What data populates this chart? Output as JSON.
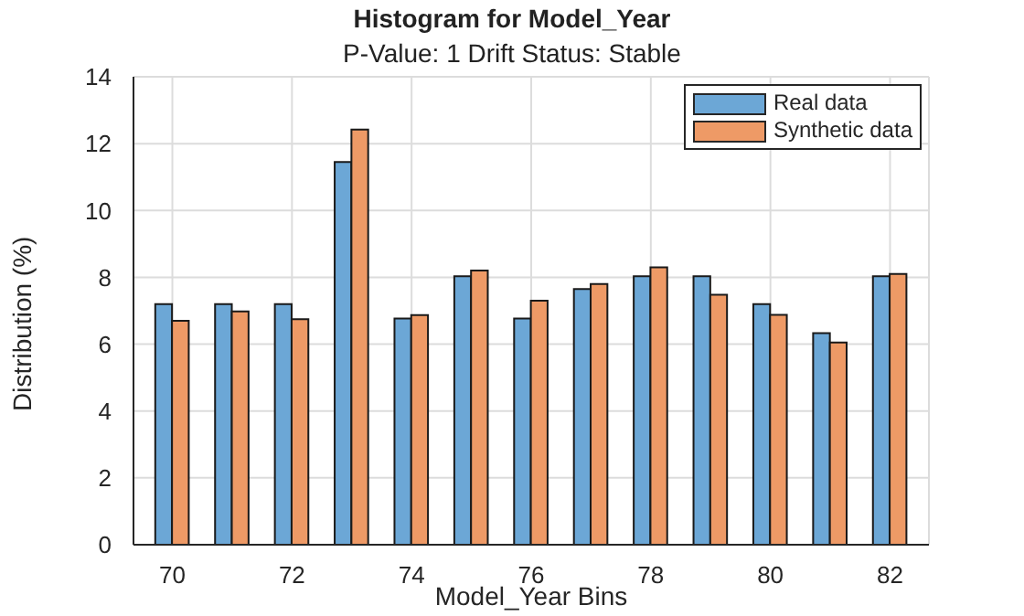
{
  "chart_data": {
    "type": "bar",
    "title": "Histogram for Model_Year",
    "subtitle": "P-Value: 1 Drift Status: Stable",
    "xlabel": "Model_Year Bins",
    "ylabel": "Distribution (%)",
    "x": [
      70,
      71,
      72,
      73,
      74,
      75,
      76,
      77,
      78,
      79,
      80,
      81,
      82
    ],
    "series": [
      {
        "name": "Real data",
        "color": "#6ca7d6",
        "values": [
          7.2,
          7.2,
          7.2,
          11.45,
          6.77,
          8.03,
          6.77,
          7.65,
          8.03,
          8.03,
          7.2,
          6.33,
          8.03
        ]
      },
      {
        "name": "Synthetic data",
        "color": "#ee9a66",
        "values": [
          6.7,
          6.98,
          6.75,
          12.42,
          6.87,
          8.2,
          7.3,
          7.8,
          8.3,
          7.48,
          6.88,
          6.05,
          8.1
        ]
      }
    ],
    "xlim": [
      69.35,
      82.65
    ],
    "xticks": [
      70,
      72,
      74,
      76,
      78,
      80,
      82
    ],
    "ylim": [
      0,
      14
    ],
    "yticks": [
      0,
      2,
      4,
      6,
      8,
      10,
      12,
      14
    ],
    "grid": true,
    "legend": "top right"
  }
}
